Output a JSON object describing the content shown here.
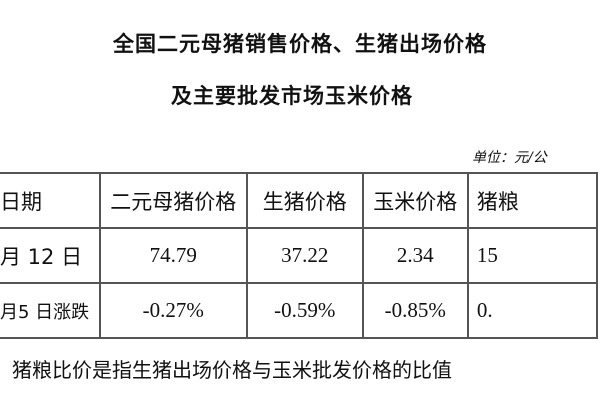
{
  "title_line1": "全国二元母猪销售价格、生猪出场价格",
  "title_line2": "及主要批发市场玉米价格",
  "unit": "单位：元/公",
  "table": {
    "headers": [
      "日期",
      "二元母猪价格",
      "生猪价格",
      "玉米价格",
      "猪粮"
    ],
    "rows": [
      [
        "月 12 日",
        "74.79",
        "37.22",
        "2.34",
        "15"
      ],
      [
        "月5 日涨跌",
        "-0.27%",
        "-0.59%",
        "-0.85%",
        "0."
      ]
    ]
  },
  "footnote": "猪粮比价是指生猪出场价格与玉米批发价格的比值"
}
